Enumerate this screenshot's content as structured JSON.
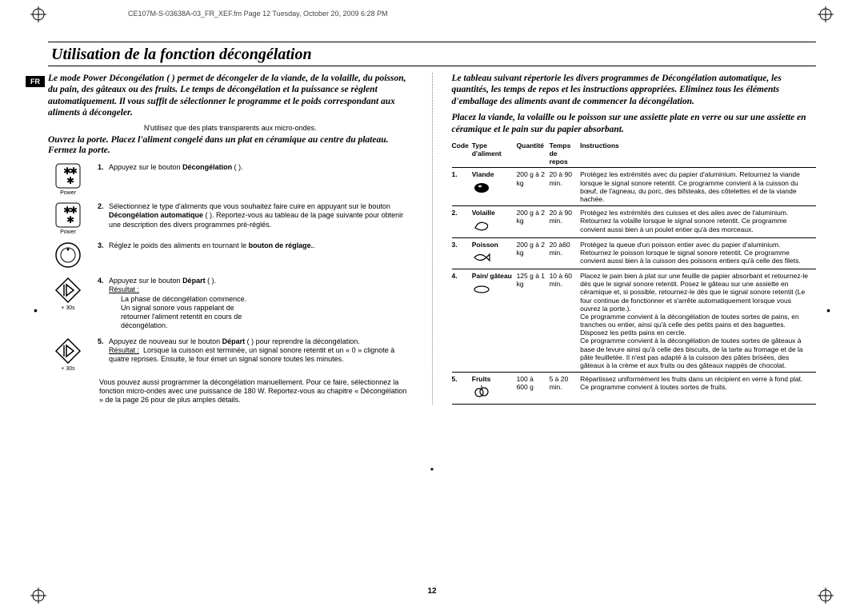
{
  "meta": {
    "header": "CE107M-S-03638A-03_FR_XEF.fm  Page 12  Tuesday, October 20, 2009  6:28 PM",
    "page_number": "12",
    "lang_tab": "FR",
    "fonts": {
      "serif": "Times New Roman",
      "sans": "Arial"
    },
    "colors": {
      "page_bg": "#ffffff",
      "outer_bg": "#525252",
      "text": "#000000",
      "rule": "#000000"
    }
  },
  "title": "Utilisation de la fonction décongélation",
  "left": {
    "intro": "Le mode Power Décongélation (  ) permet de décongeler de la viande, de la volaille, du poisson, du pain, des gâteaux ou des fruits. Le temps de décongélation et la puissance se règlent automatiquement. Il vous suffit de sélectionner le programme et le poids correspondant aux aliments à décongeler.",
    "note": "N'utilisez que des plats transparents aux micro-ondes.",
    "sub": "Ouvrez la porte. Placez l'aliment congelé dans un plat en céramique au centre du plateau. Fermez la porte.",
    "steps": [
      {
        "n": "1.",
        "icon": "power",
        "label": "Power",
        "text": "Appuyez sur le bouton <b>Décongélation</b> (  )."
      },
      {
        "n": "2.",
        "icon": "power",
        "label": "Power",
        "text": "Sélectionnez le type d'aliments que vous souhaitez faire cuire en appuyant sur le bouton <b>Décongélation automatique</b> (  ). Reportez-vous au tableau de la page suivante pour obtenir une description des divers programmes pré-réglés."
      },
      {
        "n": "3.",
        "icon": "dial",
        "label": "",
        "text": "Réglez le poids des aliments en tournant le <b>bouton de réglage.</b>."
      },
      {
        "n": "4.",
        "icon": "start",
        "label": "+ 30s",
        "text": "Appuyez sur le bouton <b>Départ</b> (  ).<br><u>Résultat :</u><br>&nbsp;&nbsp;&nbsp;&nbsp;&nbsp;&nbsp;La phase de décongélation commence.<br>&nbsp;&nbsp;&nbsp;&nbsp;&nbsp;&nbsp;Un signal sonore vous rappelant de<br>&nbsp;&nbsp;&nbsp;&nbsp;&nbsp;&nbsp;retourner l'aliment retentit en cours de<br>&nbsp;&nbsp;&nbsp;&nbsp;&nbsp;&nbsp;décongélation."
      },
      {
        "n": "5.",
        "icon": "start",
        "label": "+ 30s",
        "text": "Appuyez de nouveau sur le bouton <b>Départ</b> (  ) pour reprendre la décongélation.<br><u>Résultat :</u>&nbsp;&nbsp;Lorsque la cuisson est terminée, un signal sonore retentit et un « 0 » clignote à quatre reprises. Ensuite, le four émet un signal sonore toutes les minutes."
      }
    ],
    "footnote": "Vous pouvez aussi programmer la décongélation manuellement. Pour ce faire, sélectionnez la fonction micro-ondes avec une puissance de 180 W. Reportez-vous au chapitre « Décongélation » de la page 26 pour de plus amples détails."
  },
  "right": {
    "intro": "Le tableau suivant répertorie les divers programmes de Décongélation automatique, les quantités, les temps de repos et les instructions appropriées. Eliminez tous les éléments d'emballage des aliments avant de commencer la décongélation.",
    "sub": "Placez la viande, la volaille ou le poisson sur une assiette plate en verre ou sur une assiette en céramique et le pain sur du papier absorbant.",
    "headers": {
      "code": "Code",
      "type": "Type d'aliment",
      "qty": "Quantité",
      "time": "Temps de repos",
      "instr": "Instructions"
    },
    "rows": [
      {
        "code": "1.",
        "type": "Viande",
        "icon": "meat",
        "qty": "200 g à 2 kg",
        "time": "20 à 90 min.",
        "instr": "Protégez les extrémités avec du papier d'aluminium. Retournez la viande lorsque le signal sonore retentit. Ce programme convient à la cuisson du bœuf, de l'agneau, du porc, des bifsteaks, des côtelettes et de la viande hachée."
      },
      {
        "code": "2.",
        "type": "Volaille",
        "icon": "poultry",
        "qty": "200 g à 2 kg",
        "time": "20 à 90 min.",
        "instr": "Protégez les extrémités des cuisses et des ailes avec de l'aluminium. Retournez la volaille lorsque le signal sonore retentit. Ce programme convient aussi bien à un poulet entier qu'à des morceaux."
      },
      {
        "code": "3.",
        "type": "Poisson",
        "icon": "fish",
        "qty": "200 g à 2 kg",
        "time": "20 à60 min.",
        "instr": "Protégez la queue d'un poisson entier avec du papier d'aluminium. Retournez le poisson lorsque le signal sonore retentit. Ce programme convient aussi bien à la cuisson des poissons entiers qu'à celle des filets."
      },
      {
        "code": "4.",
        "type": "Pain/ gâteau",
        "icon": "bread",
        "qty": "125 g à 1 kg",
        "time": "10 à 60 min.",
        "instr": "Placez le pain bien à plat sur une feuille de papier absorbant et retournez-le dès que le signal sonore retentit. Posez le gâteau sur une assiette en céramique et, si possible, retournez-le dès que le signal sonore retentit (Le four continue de fonctionner et s'arrête automatiquement lorsque vous ouvrez la porte.).\nCe programme convient à la décongélation de toutes sortes de pains, en tranches ou entier, ainsi qu'à celle des petits pains et des baguettes. Disposez les petits pains en cercle.\nCe programme convient à la décongélation de toutes sortes de gâteaux à base de levure ainsi qu'à celle des biscuits, de la tarte au fromage et de la pâte feuilletée. Il n'est pas adapté à la cuisson des pâtes brisées, des gâteaux à la crème et aux fruits ou des gâteaux nappés de chocolat."
      },
      {
        "code": "5.",
        "type": "Fruits",
        "icon": "fruit",
        "qty": "100 à 600 g",
        "time": "5 à 20 min.",
        "instr": "Répartissez uniformément les fruits dans un récipient en verre à fond plat.\nCe programme convient à toutes sortes de fruits."
      }
    ]
  }
}
